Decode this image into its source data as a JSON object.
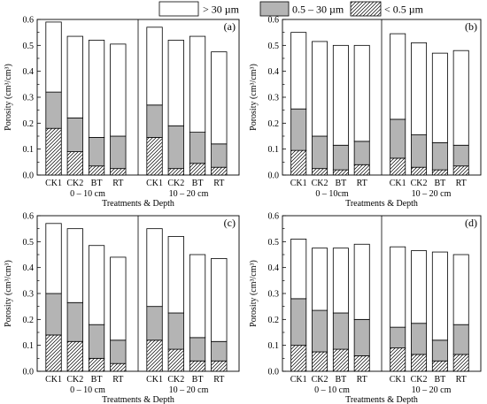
{
  "legend": {
    "items": [
      {
        "label": "> 30 µm",
        "fill": "white"
      },
      {
        "label": "0.5 – 30 µm",
        "fill": "gray"
      },
      {
        "label": "< 0.5 µm",
        "fill": "hatch"
      }
    ]
  },
  "colors": {
    "gray": "#b4b4b4",
    "white": "#ffffff",
    "stroke": "#000000"
  },
  "chart_data": [
    {
      "type": "bar",
      "stacked": true,
      "panel_label": "(a)",
      "ylabel": "Porosity (cm³/cm³)",
      "xlabel": "Treatments & Depth",
      "ylim": [
        0,
        0.6
      ],
      "yticks": [
        "0.0",
        "0.1",
        "0.2",
        "0.3",
        "0.4",
        "0.5",
        "0.6"
      ],
      "groups": [
        {
          "label": "0 – 10 cm",
          "categories": [
            "CK1",
            "CK2",
            "BT",
            "RT"
          ]
        },
        {
          "label": "10 – 20 cm",
          "categories": [
            "CK1",
            "CK2",
            "BT",
            "RT"
          ]
        }
      ],
      "series": [
        {
          "name": "< 0.5 µm",
          "values": [
            0.18,
            0.09,
            0.035,
            0.025,
            0.145,
            0.025,
            0.045,
            0.03
          ]
        },
        {
          "name": "0.5 – 30 µm",
          "values": [
            0.14,
            0.13,
            0.11,
            0.125,
            0.125,
            0.165,
            0.12,
            0.09
          ]
        },
        {
          "name": "> 30 µm",
          "values": [
            0.27,
            0.315,
            0.375,
            0.355,
            0.3,
            0.33,
            0.37,
            0.355
          ]
        }
      ]
    },
    {
      "type": "bar",
      "stacked": true,
      "panel_label": "(b)",
      "ylabel": "Porosity (cm³/cm³)",
      "xlabel": "Treatments & Depth",
      "ylim": [
        0,
        0.6
      ],
      "yticks": [
        "0.0",
        "0.1",
        "0.2",
        "0.3",
        "0.4",
        "0.5",
        "0.6"
      ],
      "groups": [
        {
          "label": "0 – 10cm",
          "categories": [
            "CK1",
            "CK2",
            "BT",
            "RT"
          ]
        },
        {
          "label": "10 – 20 cm",
          "categories": [
            "CK1",
            "CK2",
            "BT",
            "RT"
          ]
        }
      ],
      "series": [
        {
          "name": "< 0.5 µm",
          "values": [
            0.095,
            0.025,
            0.02,
            0.04,
            0.065,
            0.03,
            0.02,
            0.035
          ]
        },
        {
          "name": "0.5 – 30 µm",
          "values": [
            0.16,
            0.125,
            0.095,
            0.09,
            0.15,
            0.125,
            0.105,
            0.08
          ]
        },
        {
          "name": "> 30 µm",
          "values": [
            0.295,
            0.365,
            0.385,
            0.37,
            0.33,
            0.355,
            0.345,
            0.365
          ]
        }
      ]
    },
    {
      "type": "bar",
      "stacked": true,
      "panel_label": "(c)",
      "ylabel": "Porosity (cm³/cm³)",
      "xlabel": "Treatments & Depth",
      "ylim": [
        0,
        0.6
      ],
      "yticks": [
        "0.0",
        "0.1",
        "0.2",
        "0.3",
        "0.4",
        "0.5",
        "0.6"
      ],
      "groups": [
        {
          "label": "0 – 10 cm",
          "categories": [
            "CK1",
            "CK2",
            "BT",
            "RT"
          ]
        },
        {
          "label": "10 – 20 cm",
          "categories": [
            "CK1",
            "CK2",
            "BT",
            "RT"
          ]
        }
      ],
      "series": [
        {
          "name": "< 0.5 µm",
          "values": [
            0.14,
            0.115,
            0.05,
            0.03,
            0.12,
            0.085,
            0.04,
            0.04
          ]
        },
        {
          "name": "0.5 – 30 µm",
          "values": [
            0.16,
            0.15,
            0.13,
            0.09,
            0.13,
            0.14,
            0.09,
            0.075
          ]
        },
        {
          "name": "> 30 µm",
          "values": [
            0.27,
            0.285,
            0.305,
            0.32,
            0.3,
            0.295,
            0.32,
            0.32
          ]
        }
      ]
    },
    {
      "type": "bar",
      "stacked": true,
      "panel_label": "(d)",
      "ylabel": "Porosity (cm³/cm³)",
      "xlabel": "Treatments & Depth",
      "ylim": [
        0,
        0.6
      ],
      "yticks": [
        "0.0",
        "0.1",
        "0.2",
        "0.3",
        "0.4",
        "0.5",
        "0.6"
      ],
      "groups": [
        {
          "label": "0 – 10 cm",
          "categories": [
            "CK1",
            "CK2",
            "BT",
            "RT"
          ]
        },
        {
          "label": "10 – 20 cm",
          "categories": [
            "CK1",
            "CK2",
            "BT",
            "RT"
          ]
        }
      ],
      "series": [
        {
          "name": "< 0.5 µm",
          "values": [
            0.1,
            0.075,
            0.085,
            0.06,
            0.09,
            0.065,
            0.04,
            0.065
          ]
        },
        {
          "name": "0.5 – 30 µm",
          "values": [
            0.18,
            0.16,
            0.14,
            0.14,
            0.08,
            0.12,
            0.08,
            0.115
          ]
        },
        {
          "name": "> 30 µm",
          "values": [
            0.23,
            0.24,
            0.25,
            0.29,
            0.31,
            0.28,
            0.34,
            0.27
          ]
        }
      ]
    }
  ]
}
